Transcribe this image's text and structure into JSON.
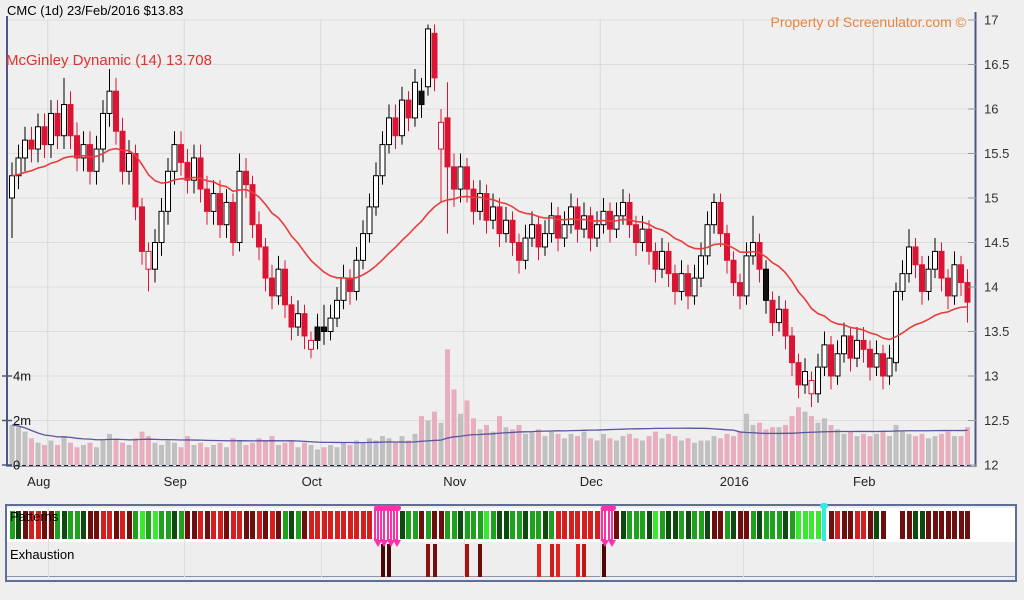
{
  "header": {
    "title": "CMC (1d) 23/Feb/2016 $13.83",
    "indicator_label": "McGinley Dynamic (14) 13.708",
    "watermark": "Property of Screenulator.com ©"
  },
  "panel": {
    "signals_label": "Patterns",
    "exhaustion_label": "Exhaustion"
  },
  "chart_data": {
    "type": "candlestick+volume",
    "title": "CMC (1d) 23/Feb/2016 $13.83",
    "symbol": "CMC",
    "interval": "1d",
    "date": "23/Feb/2016",
    "last_price": 13.83,
    "mcginley": {
      "period": 14,
      "value": 13.708
    },
    "y_axis": {
      "min": 12,
      "max": 17,
      "tick": 0.5,
      "labels": [
        "17",
        "16.5",
        "16",
        "15.5",
        "15",
        "14.5",
        "14",
        "13.5",
        "13",
        "12.5",
        "12"
      ],
      "label_values": [
        17,
        16.5,
        16,
        15.5,
        15,
        14.5,
        14,
        13.5,
        13,
        12.5,
        12
      ]
    },
    "volume_axis": {
      "labels": [
        "4m",
        "2m",
        "0"
      ],
      "label_values_m": [
        4,
        2,
        0
      ]
    },
    "x_axis": {
      "months": [
        {
          "label": "Aug",
          "boundary_index": 5.5
        },
        {
          "label": "Sep",
          "boundary_index": 26.5
        },
        {
          "label": "Oct",
          "boundary_index": 47.5
        },
        {
          "label": "Nov",
          "boundary_index": 69.5
        },
        {
          "label": "Dec",
          "boundary_index": 90.5
        },
        {
          "label": "2016",
          "boundary_index": 112.5
        },
        {
          "label": "Feb",
          "boundary_index": 132.5
        }
      ]
    },
    "candles": [
      [
        15.0,
        15.4,
        14.55,
        15.25,
        1.8
      ],
      [
        15.25,
        15.6,
        15.1,
        15.45,
        1.7
      ],
      [
        15.45,
        15.8,
        15.3,
        15.65,
        1.5
      ],
      [
        15.65,
        15.8,
        15.4,
        15.55,
        1.2
      ],
      [
        15.55,
        15.95,
        15.4,
        15.8,
        1.0
      ],
      [
        15.8,
        15.95,
        15.45,
        15.6,
        0.9
      ],
      [
        15.6,
        16.1,
        15.45,
        15.95,
        1.1
      ],
      [
        15.95,
        16.1,
        15.55,
        15.7,
        0.9
      ],
      [
        15.7,
        16.35,
        15.55,
        16.05,
        1.3
      ],
      [
        16.05,
        16.2,
        15.55,
        15.7,
        1.0
      ],
      [
        15.7,
        15.85,
        15.3,
        15.45,
        0.8
      ],
      [
        15.45,
        15.75,
        15.3,
        15.6,
        0.9
      ],
      [
        15.6,
        15.75,
        15.15,
        15.3,
        1.0
      ],
      [
        15.3,
        15.7,
        15.15,
        15.55,
        0.8
      ],
      [
        15.55,
        16.1,
        15.4,
        15.95,
        1.1
      ],
      [
        15.95,
        16.45,
        15.8,
        16.2,
        1.4
      ],
      [
        16.2,
        16.35,
        15.6,
        15.75,
        1.2
      ],
      [
        15.75,
        15.9,
        15.15,
        15.3,
        1.0
      ],
      [
        15.3,
        15.65,
        15.15,
        15.5,
        0.9
      ],
      [
        15.5,
        15.6,
        14.75,
        14.9,
        1.2
      ],
      [
        14.9,
        15.0,
        14.25,
        14.4,
        1.5
      ],
      [
        14.4,
        14.5,
        13.95,
        14.2,
        1.3
      ],
      [
        14.2,
        14.65,
        14.05,
        14.5,
        1.0
      ],
      [
        14.5,
        15.0,
        14.35,
        14.85,
        0.9
      ],
      [
        14.85,
        15.45,
        14.7,
        15.3,
        1.1
      ],
      [
        15.3,
        15.75,
        15.15,
        15.6,
        1.0
      ],
      [
        15.6,
        15.75,
        15.25,
        15.4,
        0.8
      ],
      [
        15.4,
        15.55,
        15.05,
        15.2,
        1.3
      ],
      [
        15.2,
        15.6,
        15.05,
        15.45,
        0.9
      ],
      [
        15.45,
        15.6,
        14.95,
        15.1,
        1.0
      ],
      [
        15.1,
        15.25,
        14.7,
        14.85,
        0.8
      ],
      [
        14.85,
        15.2,
        14.7,
        15.05,
        0.9
      ],
      [
        15.05,
        15.2,
        14.55,
        14.7,
        1.0
      ],
      [
        14.7,
        15.1,
        14.55,
        14.95,
        0.8
      ],
      [
        14.95,
        15.05,
        14.35,
        14.5,
        1.2
      ],
      [
        14.5,
        15.5,
        14.4,
        15.3,
        1.1
      ],
      [
        15.3,
        15.45,
        15.0,
        15.15,
        0.9
      ],
      [
        15.15,
        15.25,
        14.55,
        14.7,
        1.0
      ],
      [
        14.7,
        14.85,
        14.3,
        14.45,
        1.2
      ],
      [
        14.45,
        14.55,
        13.95,
        14.1,
        1.1
      ],
      [
        14.1,
        14.25,
        13.75,
        13.9,
        1.3
      ],
      [
        13.9,
        14.35,
        13.8,
        14.2,
        0.9
      ],
      [
        14.2,
        14.3,
        13.65,
        13.8,
        1.0
      ],
      [
        13.8,
        13.9,
        13.4,
        13.55,
        1.1
      ],
      [
        13.55,
        13.85,
        13.45,
        13.7,
        0.8
      ],
      [
        13.7,
        13.8,
        13.3,
        13.45,
        1.0
      ],
      [
        13.3,
        13.5,
        13.2,
        13.4,
        0.9
      ],
      [
        13.4,
        13.7,
        13.3,
        13.55,
        0.7
      ],
      [
        13.55,
        13.8,
        13.35,
        13.5,
        0.8
      ],
      [
        13.5,
        13.8,
        13.4,
        13.65,
        0.9
      ],
      [
        13.65,
        14.0,
        13.55,
        13.85,
        0.8
      ],
      [
        13.85,
        14.25,
        13.75,
        14.1,
        1.0
      ],
      [
        14.1,
        14.2,
        13.8,
        13.95,
        0.9
      ],
      [
        13.95,
        14.45,
        13.85,
        14.3,
        1.1
      ],
      [
        14.3,
        14.75,
        14.2,
        14.6,
        1.0
      ],
      [
        14.6,
        15.05,
        14.5,
        14.9,
        1.2
      ],
      [
        14.9,
        15.4,
        14.8,
        15.25,
        1.1
      ],
      [
        15.25,
        15.75,
        15.15,
        15.6,
        1.3
      ],
      [
        15.6,
        16.05,
        15.5,
        15.9,
        1.2
      ],
      [
        15.9,
        16.05,
        15.55,
        15.7,
        1.0
      ],
      [
        15.7,
        16.25,
        15.6,
        16.1,
        1.3
      ],
      [
        16.1,
        16.2,
        15.75,
        15.9,
        1.1
      ],
      [
        15.9,
        16.45,
        15.8,
        16.3,
        1.4
      ],
      [
        16.2,
        16.35,
        15.9,
        16.05,
        2.2
      ],
      [
        16.25,
        16.95,
        16.15,
        16.9,
        2.0
      ],
      [
        16.85,
        16.95,
        16.2,
        16.35,
        2.4
      ],
      [
        15.55,
        16.0,
        14.95,
        15.85,
        1.9
      ],
      [
        15.9,
        16.3,
        14.6,
        15.35,
        5.2
      ],
      [
        15.35,
        15.5,
        14.9,
        15.1,
        3.4
      ],
      [
        15.1,
        15.5,
        14.95,
        15.35,
        2.3
      ],
      [
        15.35,
        15.45,
        14.95,
        15.1,
        2.9
      ],
      [
        15.1,
        15.2,
        14.7,
        14.85,
        2.1
      ],
      [
        14.85,
        15.2,
        14.75,
        15.05,
        1.6
      ],
      [
        15.05,
        15.15,
        14.6,
        14.75,
        1.8
      ],
      [
        14.75,
        15.05,
        14.65,
        14.9,
        1.5
      ],
      [
        14.9,
        15.0,
        14.45,
        14.6,
        2.2
      ],
      [
        14.6,
        14.9,
        14.5,
        14.75,
        1.7
      ],
      [
        14.75,
        14.85,
        14.35,
        14.5,
        1.6
      ],
      [
        14.5,
        14.6,
        14.15,
        14.3,
        1.8
      ],
      [
        14.3,
        14.7,
        14.2,
        14.55,
        1.4
      ],
      [
        14.55,
        14.85,
        14.45,
        14.7,
        1.5
      ],
      [
        14.7,
        14.8,
        14.3,
        14.45,
        1.6
      ],
      [
        14.45,
        14.75,
        14.35,
        14.6,
        1.3
      ],
      [
        14.6,
        14.95,
        14.5,
        14.8,
        1.5
      ],
      [
        14.8,
        14.9,
        14.4,
        14.55,
        1.4
      ],
      [
        14.55,
        14.85,
        14.45,
        14.7,
        1.2
      ],
      [
        14.7,
        15.05,
        14.6,
        14.9,
        1.4
      ],
      [
        14.9,
        15.0,
        14.5,
        14.65,
        1.3
      ],
      [
        14.65,
        14.95,
        14.55,
        14.8,
        1.5
      ],
      [
        14.8,
        14.9,
        14.4,
        14.55,
        1.2
      ],
      [
        14.55,
        14.85,
        14.45,
        14.7,
        1.1
      ],
      [
        14.7,
        15.0,
        14.6,
        14.85,
        1.4
      ],
      [
        14.85,
        14.95,
        14.5,
        14.65,
        1.2
      ],
      [
        14.65,
        14.95,
        14.55,
        14.8,
        1.1
      ],
      [
        14.8,
        15.1,
        14.7,
        14.95,
        1.3
      ],
      [
        14.95,
        15.05,
        14.55,
        14.7,
        1.4
      ],
      [
        14.7,
        14.8,
        14.35,
        14.5,
        1.2
      ],
      [
        14.5,
        14.8,
        14.4,
        14.65,
        1.1
      ],
      [
        14.65,
        14.75,
        14.25,
        14.4,
        1.3
      ],
      [
        14.4,
        14.5,
        14.05,
        14.2,
        1.5
      ],
      [
        14.2,
        14.55,
        14.1,
        14.4,
        1.2
      ],
      [
        14.4,
        14.5,
        14.0,
        14.15,
        1.4
      ],
      [
        14.15,
        14.25,
        13.8,
        13.95,
        1.3
      ],
      [
        13.95,
        14.3,
        13.85,
        14.15,
        1.1
      ],
      [
        14.15,
        14.25,
        13.75,
        13.9,
        1.2
      ],
      [
        13.9,
        14.25,
        13.8,
        14.1,
        1.0
      ],
      [
        14.1,
        14.5,
        14.0,
        14.35,
        1.1
      ],
      [
        14.35,
        14.85,
        14.25,
        14.7,
        1.1
      ],
      [
        14.7,
        15.05,
        14.6,
        14.95,
        1.3
      ],
      [
        14.95,
        15.05,
        14.45,
        14.6,
        1.2
      ],
      [
        14.6,
        14.7,
        14.15,
        14.3,
        1.4
      ],
      [
        14.3,
        14.4,
        13.9,
        14.05,
        1.3
      ],
      [
        14.05,
        14.15,
        13.75,
        13.9,
        1.5
      ],
      [
        13.9,
        14.5,
        13.8,
        14.35,
        2.3
      ],
      [
        14.35,
        14.8,
        14.25,
        14.5,
        1.8
      ],
      [
        14.5,
        14.6,
        14.05,
        14.2,
        1.9
      ],
      [
        14.2,
        14.3,
        13.7,
        13.85,
        1.6
      ],
      [
        13.85,
        13.95,
        13.45,
        13.6,
        1.7
      ],
      [
        13.6,
        13.9,
        13.5,
        13.75,
        1.7
      ],
      [
        13.75,
        13.85,
        13.3,
        13.45,
        1.8
      ],
      [
        13.45,
        13.55,
        13.0,
        13.15,
        2.2
      ],
      [
        13.15,
        13.25,
        12.75,
        12.9,
        2.6
      ],
      [
        12.9,
        13.2,
        12.8,
        13.05,
        2.4
      ],
      [
        12.95,
        13.05,
        12.65,
        12.8,
        2.2
      ],
      [
        12.8,
        13.25,
        12.7,
        13.1,
        1.9
      ],
      [
        13.1,
        13.5,
        13.0,
        13.35,
        2.1
      ],
      [
        13.35,
        13.45,
        12.85,
        13.0,
        1.8
      ],
      [
        13.0,
        13.4,
        12.9,
        13.25,
        1.6
      ],
      [
        13.25,
        13.6,
        13.15,
        13.45,
        1.4
      ],
      [
        13.45,
        13.55,
        13.05,
        13.2,
        1.5
      ],
      [
        13.2,
        13.55,
        13.1,
        13.4,
        1.3
      ],
      [
        13.4,
        13.55,
        13.15,
        13.3,
        1.4
      ],
      [
        13.3,
        13.4,
        12.95,
        13.1,
        1.3
      ],
      [
        13.1,
        13.4,
        13.0,
        13.25,
        1.4
      ],
      [
        13.25,
        13.35,
        12.85,
        13.0,
        1.5
      ],
      [
        13.0,
        13.35,
        12.9,
        13.2,
        1.3
      ],
      [
        13.15,
        14.05,
        13.05,
        13.95,
        1.8
      ],
      [
        13.95,
        14.3,
        13.85,
        14.15,
        1.5
      ],
      [
        14.15,
        14.65,
        14.05,
        14.45,
        1.4
      ],
      [
        14.45,
        14.55,
        14.1,
        14.25,
        1.3
      ],
      [
        14.25,
        14.35,
        13.8,
        13.95,
        1.4
      ],
      [
        13.95,
        14.35,
        13.85,
        14.2,
        1.2
      ],
      [
        14.2,
        14.55,
        14.1,
        14.4,
        1.3
      ],
      [
        14.4,
        14.5,
        13.95,
        14.1,
        1.4
      ],
      [
        14.1,
        14.2,
        13.75,
        13.9,
        1.5
      ],
      [
        13.9,
        14.4,
        13.8,
        14.25,
        1.3
      ],
      [
        14.25,
        14.35,
        13.9,
        14.05,
        1.3
      ],
      [
        14.05,
        14.2,
        13.6,
        13.83,
        1.7
      ]
    ],
    "style_overrides": {
      "hollow_red": [
        21,
        46,
        66,
        123
      ],
      "black_fill": [
        47,
        48,
        63,
        116
      ]
    },
    "signals": [
      "g",
      "dg",
      "dr",
      "r",
      "r",
      "dr",
      "dr",
      "g",
      "dg",
      "g",
      "g",
      "dg",
      "dr",
      "dr",
      "r",
      "r",
      "dr",
      "r",
      "dr",
      "g",
      "lg",
      "g",
      "lg",
      "g",
      "g",
      "dg",
      "g",
      "dr",
      "dr",
      "r",
      "dr",
      "r",
      "r",
      "dr",
      "r",
      "r",
      "dr",
      "dr",
      "r",
      "dr",
      "r",
      "dr",
      "g",
      "dg",
      "g",
      "dr",
      "r",
      "r",
      "r",
      "r",
      "r",
      "r",
      "r",
      "r",
      "r",
      "r",
      "m",
      "m",
      "m",
      "m",
      "dg",
      "g",
      "g",
      "dr",
      "g",
      "dr",
      "dr",
      "g",
      "g",
      "dg",
      "g",
      "g",
      "g",
      "lg",
      "g",
      "dg",
      "dg",
      "g",
      "g",
      "dg",
      "g",
      "g",
      "dg",
      "g",
      "r",
      "r",
      "r",
      "r",
      "r",
      "r",
      "r",
      "m",
      "m",
      "dr",
      "dg",
      "g",
      "g",
      "g",
      "dg",
      "lg",
      "g",
      "dg",
      "dg",
      "g",
      "dg",
      "g",
      "g",
      "dg",
      "dr",
      "dr",
      "g",
      "dg",
      "dr",
      "dr",
      "g",
      "dg",
      "g",
      "g",
      "g",
      "dg",
      "g",
      "lg",
      "lg",
      "lg",
      "lg",
      "c",
      "dr",
      "r",
      "dr",
      "dr",
      "r",
      "r",
      "dr",
      "dg",
      "dr",
      null,
      null,
      "dr",
      "dr",
      "dg",
      "dg",
      "dr",
      "dr",
      "dr",
      "dr",
      "dr",
      "dr",
      "dr"
    ],
    "exhaustion_bars": [
      {
        "index": 57,
        "color": "#4a0707"
      },
      {
        "index": 58,
        "color": "#4a0707"
      },
      {
        "index": 64,
        "color": "#8a1212"
      },
      {
        "index": 65,
        "color": "#701010"
      },
      {
        "index": 70,
        "color": "#a31515"
      },
      {
        "index": 72,
        "color": "#6b0d0d"
      },
      {
        "index": 81,
        "color": "#e32222"
      },
      {
        "index": 83,
        "color": "#d01b1b"
      },
      {
        "index": 84,
        "color": "#e32222"
      },
      {
        "index": 87,
        "color": "#e02020"
      },
      {
        "index": 88,
        "color": "#c01818"
      },
      {
        "index": 91,
        "color": "#4a0707"
      }
    ],
    "colors": {
      "background": "#efefef",
      "grid": "#dcdcdc",
      "axis": "#4a5880",
      "up_fill": "#ffffff",
      "up_stroke": "#000000",
      "down_fill": "#dc1433",
      "down_stroke": "#dc1433",
      "black_fill": "#111111",
      "mcginley_line": "#ea3c3c",
      "volume_up": "#c0c0c0",
      "volume_down": "#e9aebe",
      "volume_ma_line": "#5a55a0",
      "signal_lg": "#3ae832",
      "signal_g": "#1ea21e",
      "signal_dg": "#0d4a10",
      "signal_r": "#d41f1f",
      "signal_dr": "#6d0f0f",
      "signal_magenta": "#ff2fa8",
      "signal_cyan": "#35e8e0",
      "watermark": "#e8833c",
      "subtitle": "#e03030"
    },
    "legend": "none",
    "grid": "on"
  }
}
